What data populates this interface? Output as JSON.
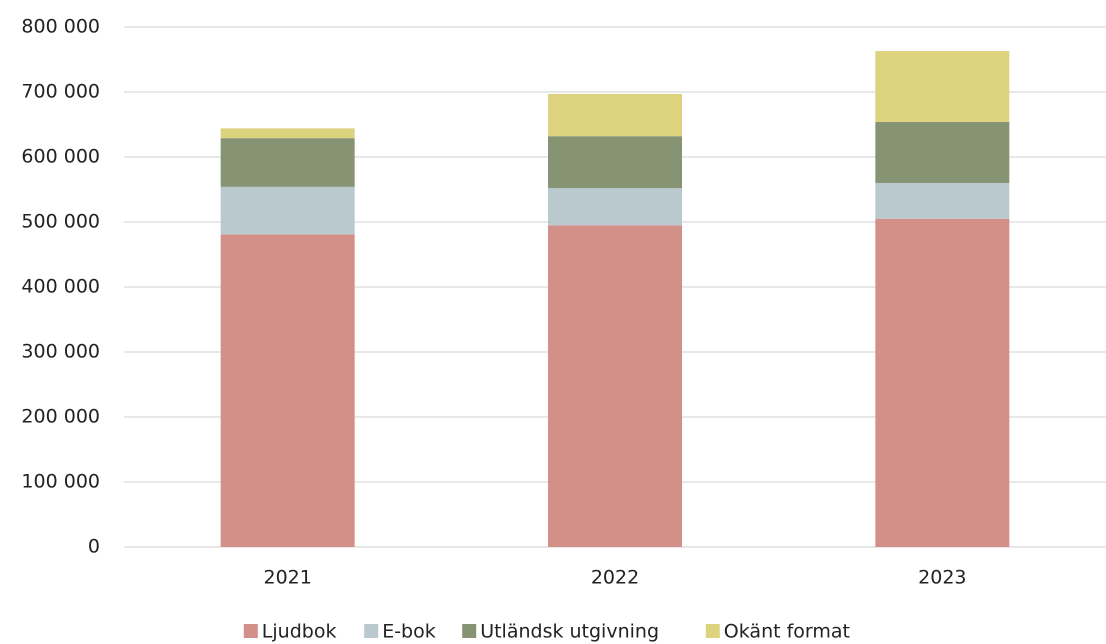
{
  "chart_data": {
    "type": "stacked_bar",
    "categories": [
      "2021",
      "2022",
      "2023"
    ],
    "series": [
      {
        "name": "Ljudbok",
        "color": "#d39088",
        "values": [
          481000,
          495000,
          505000
        ]
      },
      {
        "name": "E-bok",
        "color": "#b9c9cd",
        "values": [
          73000,
          57000,
          55000
        ]
      },
      {
        "name": "Utländsk utgivning",
        "color": "#879474",
        "values": [
          75000,
          80000,
          94000
        ]
      },
      {
        "name": "Okänt format",
        "color": "#ddd37f",
        "values": [
          15000,
          65000,
          109000
        ]
      }
    ],
    "ylim": [
      0,
      800000
    ],
    "yticks": [
      0,
      {
        "value": 100000,
        "label": "100 000"
      },
      {
        "value": 200000,
        "label": "200 000"
      },
      {
        "value": 300000,
        "label": "300 000"
      },
      {
        "value": 400000,
        "label": "400 000"
      },
      {
        "value": 500000,
        "label": "500 000"
      },
      {
        "value": 600000,
        "label": "600 000"
      },
      {
        "value": 700000,
        "label": "700 000"
      },
      {
        "value": 800000,
        "label": "800 000"
      }
    ],
    "grid": true,
    "legend": "bottom"
  }
}
